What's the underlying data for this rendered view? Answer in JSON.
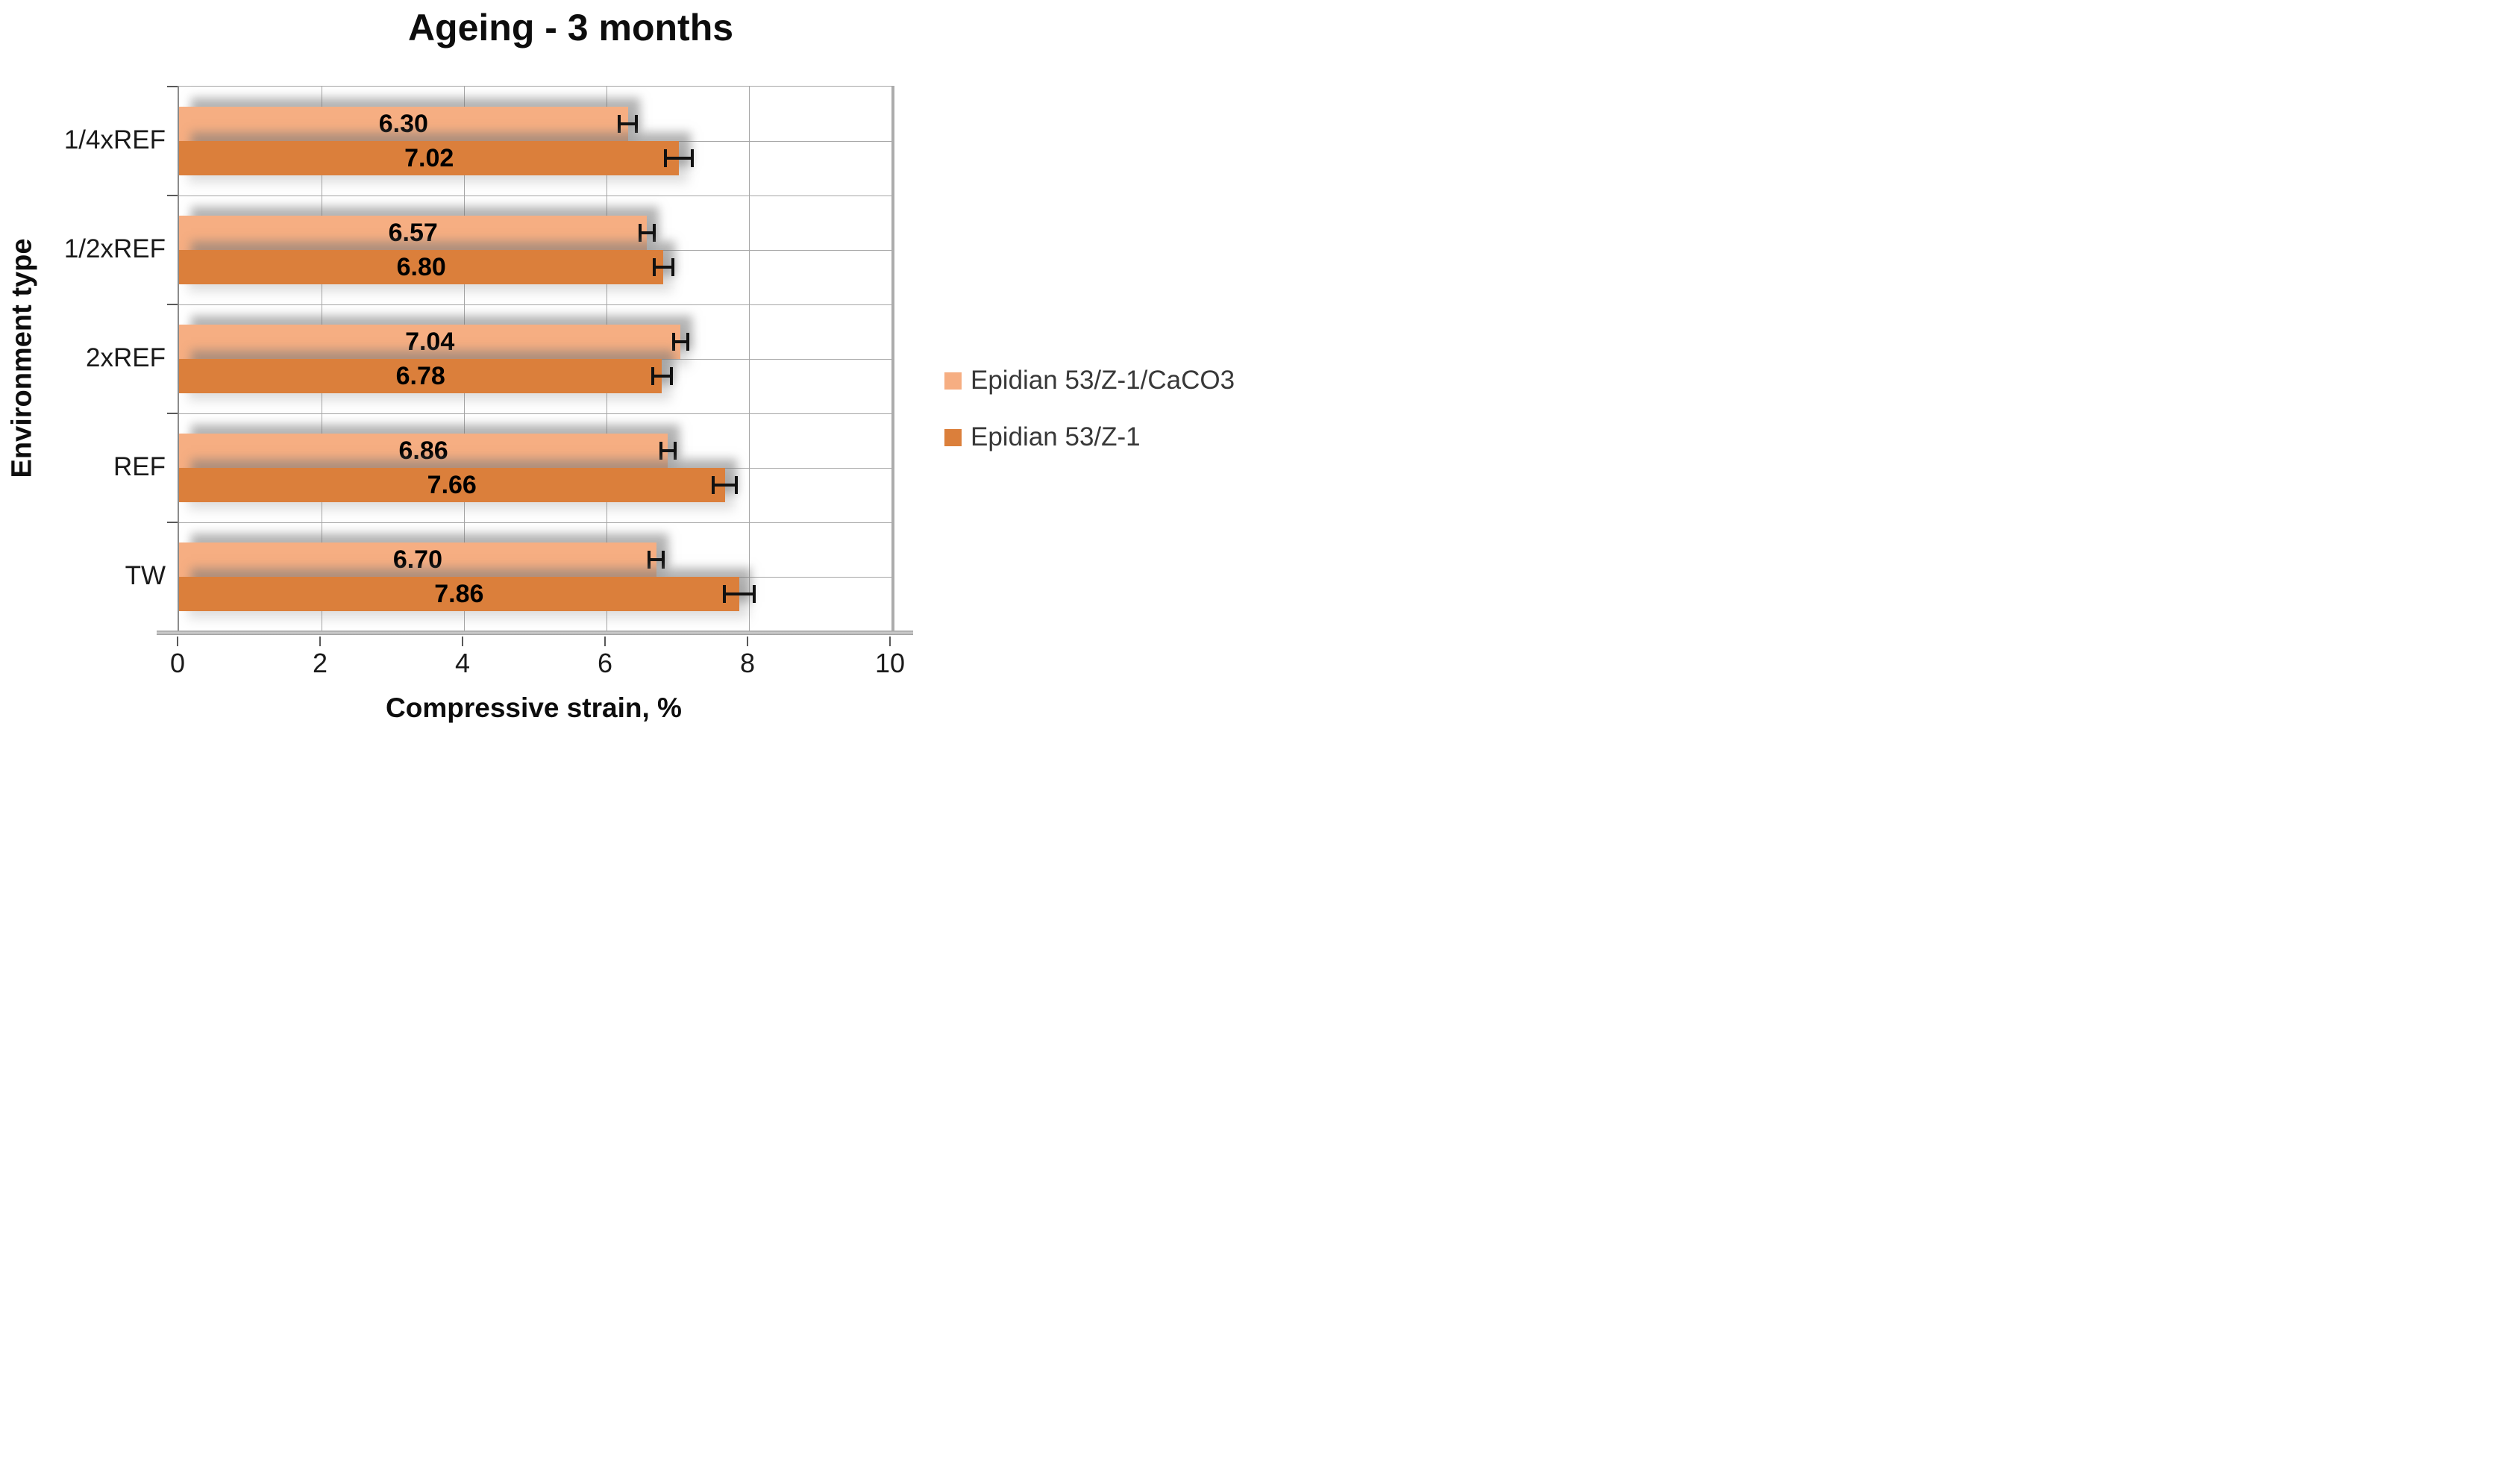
{
  "title": "Ageing - 3 months",
  "chart_data": {
    "type": "bar",
    "orientation": "horizontal",
    "title": "Ageing - 3 months",
    "xlabel": "Compressive strain, %",
    "ylabel": "Environment type",
    "xlim": [
      0,
      10
    ],
    "xticks": [
      0,
      2,
      4,
      6,
      8,
      10
    ],
    "grid": "vertical gridlines at even ticks; horizontal gridlines at half-category intervals",
    "legend_position": "right",
    "categories": [
      "1/4xREF",
      "1/2xREF",
      "2xREF",
      "REF",
      "TW"
    ],
    "series": [
      {
        "name": "Epidian 53/Z-1/CaCO3",
        "color": "#F6AE82",
        "values": [
          6.3,
          6.57,
          7.04,
          6.86,
          6.7
        ],
        "labels": [
          "6.30",
          "6.57",
          "7.04",
          "6.86",
          "6.70"
        ],
        "errors": [
          0.14,
          0.12,
          0.12,
          0.12,
          0.12
        ]
      },
      {
        "name": "Epidian 53/Z-1",
        "color": "#DB7F3B",
        "values": [
          7.02,
          6.8,
          6.78,
          7.66,
          7.86
        ],
        "labels": [
          "7.02",
          "6.80",
          "6.78",
          "7.66",
          "7.86"
        ],
        "errors": [
          0.21,
          0.15,
          0.15,
          0.18,
          0.23
        ]
      }
    ]
  }
}
